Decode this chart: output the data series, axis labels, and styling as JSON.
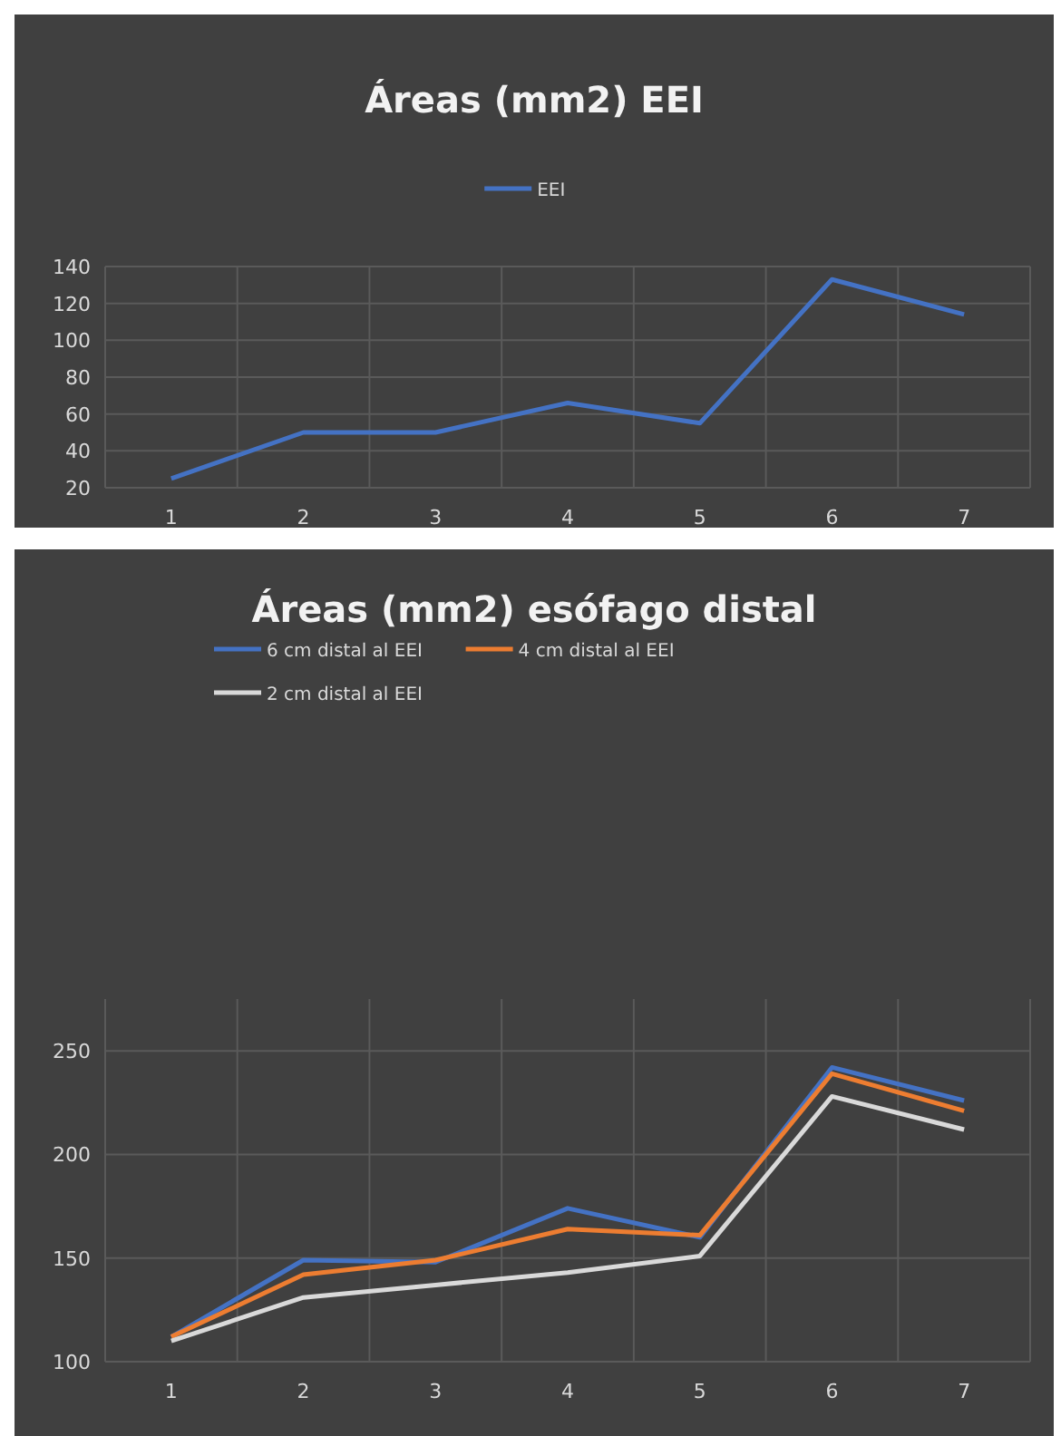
{
  "chart_data": [
    {
      "type": "line",
      "title": "Áreas (mm2) EEI",
      "categories": [
        "1",
        "2",
        "3",
        "4",
        "5",
        "6",
        "7"
      ],
      "series": [
        {
          "name": "EEI",
          "color": "#4472c4",
          "values": [
            25,
            50,
            50,
            66,
            55,
            133,
            114
          ]
        }
      ],
      "ylim": [
        20,
        140
      ],
      "yticks": [
        20,
        40,
        60,
        80,
        100,
        120,
        140
      ],
      "grid": true,
      "legend": "top"
    },
    {
      "type": "line",
      "title": "Áreas (mm2) esófago distal",
      "categories": [
        "1",
        "2",
        "3",
        "4",
        "5",
        "6",
        "7"
      ],
      "series": [
        {
          "name": "6 cm distal al EEI",
          "color": "#4472c4",
          "values": [
            112,
            149,
            148,
            174,
            160,
            242,
            226
          ]
        },
        {
          "name": "4 cm distal al EEI",
          "color": "#ed7d31",
          "values": [
            112,
            142,
            149,
            164,
            161,
            239,
            221
          ]
        },
        {
          "name": "2 cm distal al EEI",
          "color": "#d9d9d9",
          "values": [
            110,
            131,
            137,
            143,
            151,
            228,
            212
          ]
        }
      ],
      "ylim": [
        100,
        275
      ],
      "yticks": [
        100,
        150,
        200,
        250
      ],
      "grid": true,
      "legend": "top"
    }
  ]
}
